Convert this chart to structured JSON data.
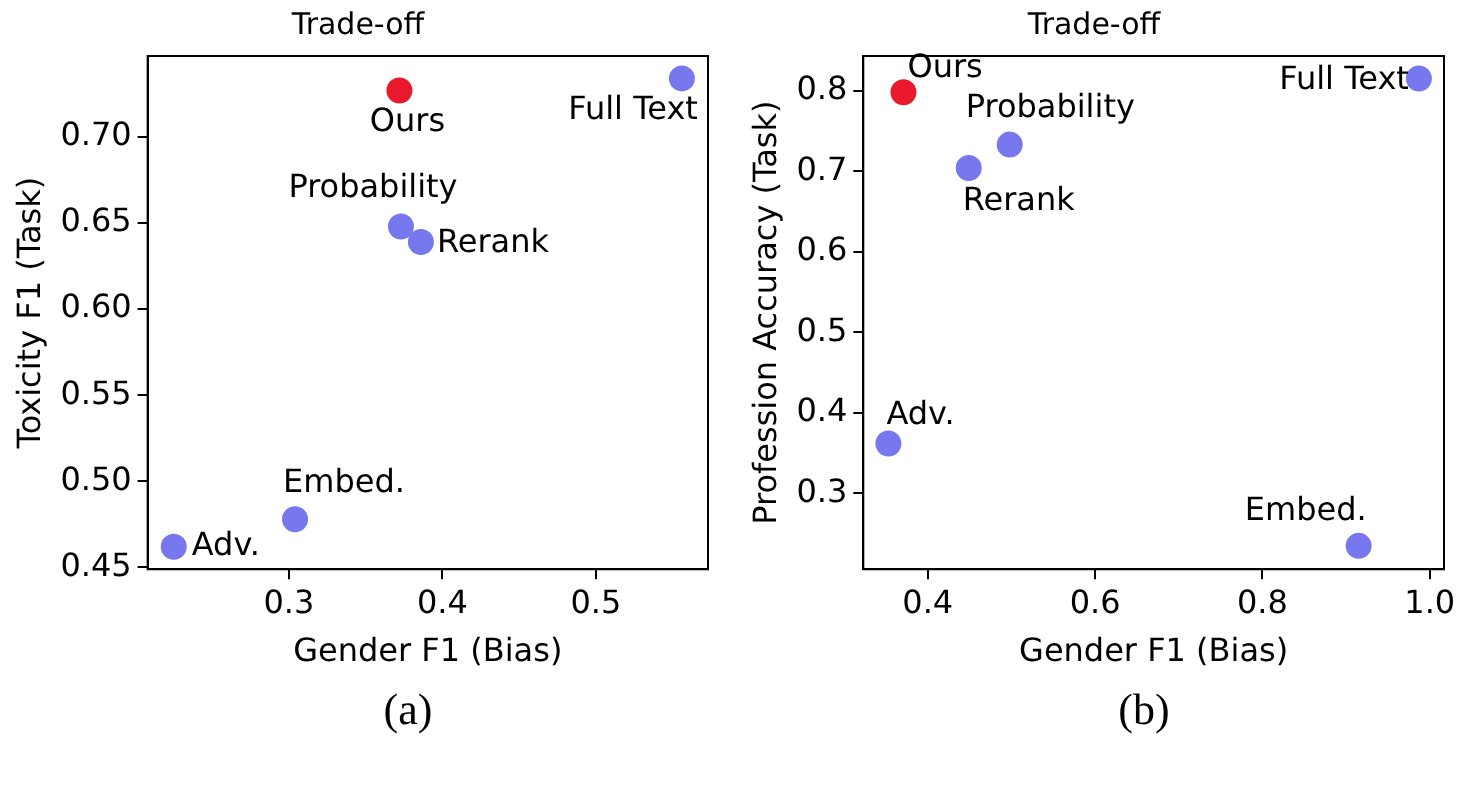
{
  "chart_data": [
    {
      "type": "scatter",
      "title": "Trade-off",
      "xlabel": "Gender F1 (Bias)",
      "ylabel": "Toxicity F1 (Task)",
      "x": [
        0.225,
        0.304,
        0.373,
        0.386,
        0.372,
        0.556
      ],
      "values": [
        0.462,
        0.478,
        0.648,
        0.639,
        0.727,
        0.734
      ],
      "colors": [
        "#7777ee",
        "#7777ee",
        "#7777ee",
        "#7777ee",
        "#e8192c",
        "#7777ee"
      ],
      "xlim": [
        0.208,
        0.573
      ],
      "xticks": [
        0.3,
        0.4,
        0.5
      ],
      "ylim": [
        0.449,
        0.747
      ],
      "yticks": [
        {
          "value": 0.45,
          "label": "0.45"
        },
        {
          "value": 0.5,
          "label": "0.50"
        },
        {
          "value": 0.55,
          "label": "0.55"
        },
        {
          "value": 0.6,
          "label": "0.60"
        },
        {
          "value": 0.65,
          "label": "0.65"
        },
        {
          "value": 0.7,
          "label": "0.70"
        }
      ],
      "marker": "circle",
      "grid": false,
      "legend": false,
      "annotations": [
        {
          "text": "Adv.",
          "x": 0.225,
          "y": 0.462
        },
        {
          "text": "Embed.",
          "x": 0.304,
          "y": 0.478
        },
        {
          "text": "Probability",
          "x": 0.373,
          "y": 0.648
        },
        {
          "text": "Rerank",
          "x": 0.386,
          "y": 0.639
        },
        {
          "text": "Ours",
          "x": 0.372,
          "y": 0.727
        },
        {
          "text": "Full Text",
          "x": 0.556,
          "y": 0.734
        },
        "(a)"
      ]
    },
    {
      "type": "scatter",
      "title": "Trade-off",
      "xlabel": "Gender F1 (Bias)",
      "ylabel": "Profession Accuracy (Task)",
      "x": [
        0.353,
        0.915,
        0.498,
        0.449,
        0.371,
        0.987
      ],
      "values": [
        0.362,
        0.235,
        0.733,
        0.704,
        0.798,
        0.815
      ],
      "colors": [
        "#7777ee",
        "#7777ee",
        "#7777ee",
        "#7777ee",
        "#e8192c",
        "#7777ee"
      ],
      "xlim": [
        0.323,
        1.017
      ],
      "xticks": [
        0.4,
        0.6,
        0.8,
        {
          "value": 1.0,
          "label": "1.0"
        }
      ],
      "ylim": [
        0.206,
        0.843
      ],
      "yticks": [
        0.3,
        0.4,
        0.5,
        0.6,
        0.7,
        0.8
      ],
      "marker": "circle",
      "grid": false,
      "legend": false,
      "annotations": [
        {
          "text": "Adv.",
          "x": 0.353,
          "y": 0.362
        },
        {
          "text": "Embed.",
          "x": 0.915,
          "y": 0.235
        },
        {
          "text": "Probability",
          "x": 0.498,
          "y": 0.733
        },
        {
          "text": "Rerank",
          "x": 0.449,
          "y": 0.704
        },
        {
          "text": "Ours",
          "x": 0.371,
          "y": 0.798
        },
        {
          "text": "Full Text",
          "x": 0.987,
          "y": 0.815
        },
        "(b)"
      ]
    }
  ]
}
